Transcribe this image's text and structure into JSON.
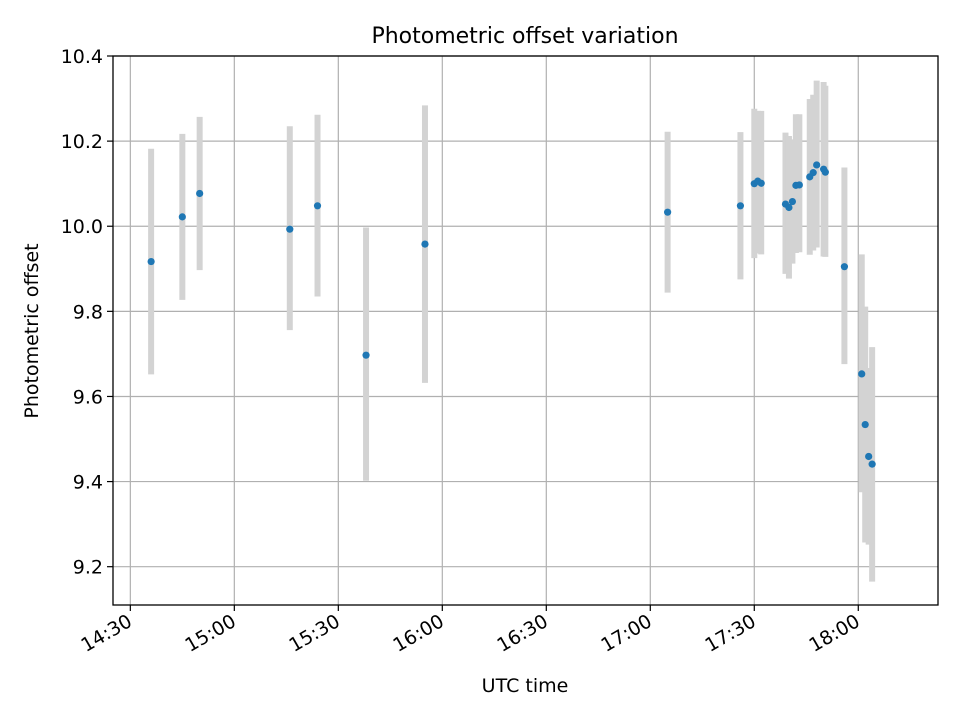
{
  "chart_data": {
    "type": "scatter",
    "title": "Photometric offset variation",
    "xlabel": "UTC time",
    "ylabel": "Photometric offset",
    "x_unit": "UTC time of day",
    "xlim": [
      "14:25",
      "18:23"
    ],
    "ylim": [
      9.11,
      10.4
    ],
    "grid": true,
    "x_ticks": [
      "14:30",
      "15:00",
      "15:30",
      "16:00",
      "16:30",
      "17:00",
      "17:30",
      "18:00"
    ],
    "y_ticks": [
      "9.2",
      "9.4",
      "9.6",
      "9.8",
      "10.0",
      "10.2",
      "10.4"
    ],
    "colors": {
      "points": "#1f77b4",
      "errorbars": "#d3d3d3",
      "grid": "#b0b0b0"
    },
    "series": [
      {
        "points": [
          {
            "x": "14:36",
            "y": 9.917,
            "lo": 9.652,
            "hi": 10.182
          },
          {
            "x": "14:45",
            "y": 10.022,
            "lo": 9.827,
            "hi": 10.217
          },
          {
            "x": "14:50",
            "y": 10.077,
            "lo": 9.897,
            "hi": 10.257
          },
          {
            "x": "15:16",
            "y": 9.993,
            "lo": 9.756,
            "hi": 10.235
          },
          {
            "x": "15:24",
            "y": 10.048,
            "lo": 9.835,
            "hi": 10.262
          },
          {
            "x": "15:38",
            "y": 9.697,
            "lo": 9.402,
            "hi": 9.997
          },
          {
            "x": "15:55",
            "y": 9.958,
            "lo": 9.632,
            "hi": 10.284
          },
          {
            "x": "17:05",
            "y": 10.033,
            "lo": 9.844,
            "hi": 10.222
          },
          {
            "x": "17:26",
            "y": 10.048,
            "lo": 9.875,
            "hi": 10.221
          },
          {
            "x": "17:30",
            "y": 10.1,
            "lo": 9.925,
            "hi": 10.276
          },
          {
            "x": "17:31",
            "y": 10.106,
            "lo": 9.936,
            "hi": 10.271
          },
          {
            "x": "17:32",
            "y": 10.101,
            "lo": 9.934,
            "hi": 10.271
          },
          {
            "x": "17:39",
            "y": 10.052,
            "lo": 9.888,
            "hi": 10.22
          },
          {
            "x": "17:40",
            "y": 10.044,
            "lo": 9.877,
            "hi": 10.212
          },
          {
            "x": "17:41",
            "y": 10.058,
            "lo": 9.912,
            "hi": 10.204
          },
          {
            "x": "17:42",
            "y": 10.096,
            "lo": 9.937,
            "hi": 10.263
          },
          {
            "x": "17:43",
            "y": 10.097,
            "lo": 9.939,
            "hi": 10.263
          },
          {
            "x": "17:46",
            "y": 10.116,
            "lo": 9.933,
            "hi": 10.299
          },
          {
            "x": "17:47",
            "y": 10.126,
            "lo": 9.943,
            "hi": 10.309
          },
          {
            "x": "17:48",
            "y": 10.144,
            "lo": 9.95,
            "hi": 10.342
          },
          {
            "x": "17:50",
            "y": 10.134,
            "lo": 9.929,
            "hi": 10.339
          },
          {
            "x": "17:50.5",
            "y": 10.127,
            "lo": 9.928,
            "hi": 10.33
          },
          {
            "x": "17:56",
            "y": 9.905,
            "lo": 9.676,
            "hi": 10.138
          },
          {
            "x": "18:01",
            "y": 9.653,
            "lo": 9.375,
            "hi": 9.934
          },
          {
            "x": "18:02",
            "y": 9.534,
            "lo": 9.257,
            "hi": 9.811
          },
          {
            "x": "18:03",
            "y": 9.459,
            "lo": 9.252,
            "hi": 9.667
          },
          {
            "x": "18:04",
            "y": 9.441,
            "lo": 9.165,
            "hi": 9.716
          }
        ]
      }
    ]
  }
}
